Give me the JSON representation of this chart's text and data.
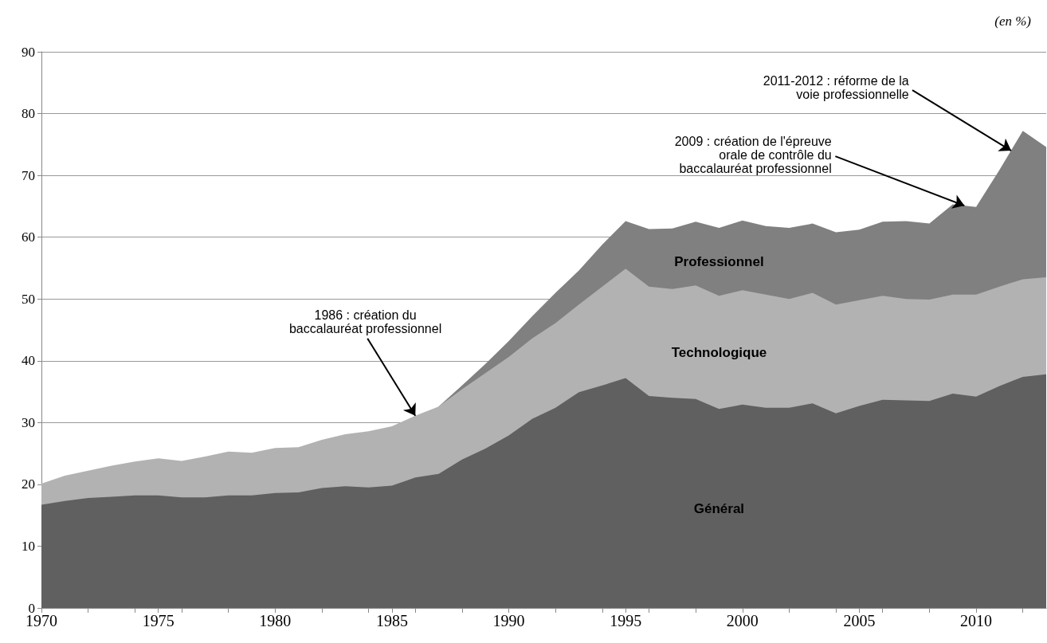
{
  "chart_data": {
    "type": "area",
    "stacked": true,
    "grid": "y",
    "x": [
      1970,
      1971,
      1972,
      1973,
      1974,
      1975,
      1976,
      1977,
      1978,
      1979,
      1980,
      1981,
      1982,
      1983,
      1984,
      1985,
      1986,
      1987,
      1988,
      1989,
      1990,
      1991,
      1992,
      1993,
      1994,
      1995,
      1996,
      1997,
      1998,
      1999,
      2000,
      2001,
      2002,
      2003,
      2004,
      2005,
      2006,
      2007,
      2008,
      2009,
      2010,
      2011,
      2012,
      2013
    ],
    "xlim": [
      1970,
      2013
    ],
    "xticks": [
      1970,
      1975,
      1980,
      1985,
      1990,
      1995,
      2000,
      2005,
      2010
    ],
    "ylim": [
      0,
      90
    ],
    "yticks": [
      0,
      10,
      20,
      30,
      40,
      50,
      60,
      70,
      80,
      90
    ],
    "series": [
      {
        "name": "Général",
        "color": "#606060",
        "values": [
          16.7,
          17.3,
          17.8,
          18.0,
          18.2,
          18.2,
          17.9,
          17.9,
          18.2,
          18.2,
          18.6,
          18.7,
          19.4,
          19.7,
          19.5,
          19.8,
          21.1,
          21.7,
          24.0,
          25.8,
          27.9,
          30.6,
          32.4,
          34.9,
          36.0,
          37.2,
          34.3,
          34.0,
          33.8,
          32.2,
          32.9,
          32.4,
          32.4,
          33.1,
          31.5,
          32.7,
          33.7,
          33.6,
          33.5,
          34.7,
          34.2,
          35.9,
          37.4,
          37.8
        ]
      },
      {
        "name": "Technologique",
        "color": "#b2b2b2",
        "values": [
          3.4,
          4.1,
          4.4,
          5.0,
          5.5,
          6.0,
          5.9,
          6.6,
          7.1,
          6.9,
          7.3,
          7.3,
          7.8,
          8.4,
          9.1,
          9.6,
          10.0,
          10.9,
          11.4,
          12.2,
          12.7,
          13.0,
          13.7,
          14.2,
          16.0,
          17.7,
          17.7,
          17.6,
          18.4,
          18.3,
          18.5,
          18.3,
          17.6,
          17.9,
          17.6,
          17.1,
          16.8,
          16.4,
          16.4,
          16.0,
          16.5,
          16.1,
          15.8,
          15.7
        ]
      },
      {
        "name": "Professionnel",
        "color": "#808080",
        "values": [
          null,
          null,
          null,
          null,
          null,
          null,
          null,
          null,
          null,
          null,
          null,
          null,
          null,
          null,
          null,
          null,
          null,
          0,
          0.6,
          1.5,
          2.6,
          3.6,
          4.9,
          5.5,
          6.8,
          7.7,
          9.3,
          9.8,
          10.3,
          11.0,
          11.3,
          11.1,
          11.5,
          11.2,
          11.7,
          11.4,
          12.0,
          12.6,
          12.3,
          14.6,
          14.2,
          18.9,
          24.0,
          21.1
        ]
      }
    ],
    "annotations": [
      "(en %)",
      {
        "text": "1986 : création du\nbaccalauréat professionnel",
        "x": 1986,
        "y": 31.1
      },
      {
        "text": "2009 : création de l'épreuve\norale de contrôle du\nbaccalauréat professionnel",
        "x": 2009.5,
        "y": 65.1
      },
      {
        "text": "2011-2012 : réforme de la\nvoie professionnelle",
        "x": 2011.5,
        "y": 74
      }
    ]
  }
}
